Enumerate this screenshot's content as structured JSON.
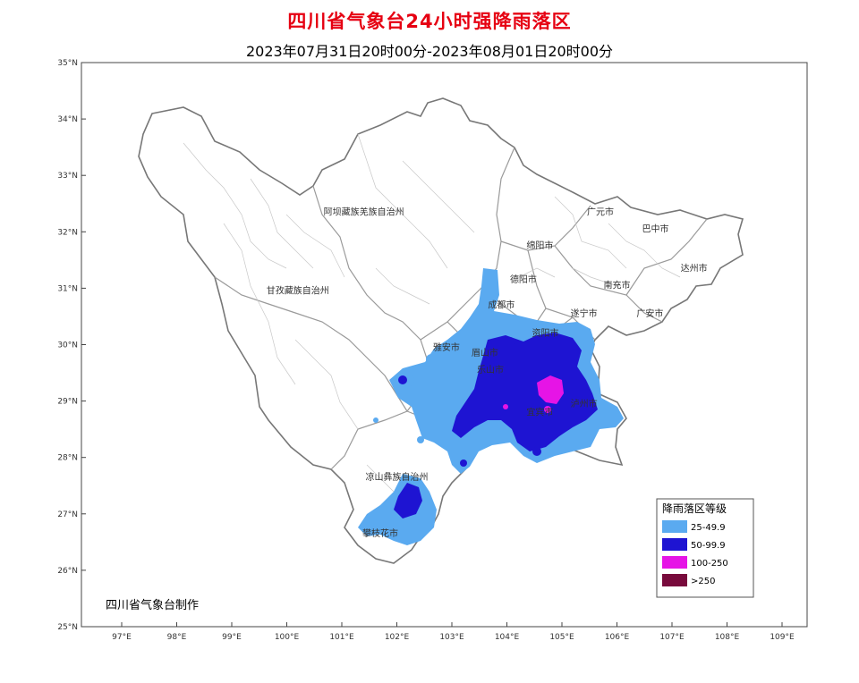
{
  "title": "四川省气象台24小时强降雨落区",
  "subtitle": "2023年07月31日20时00分-2023年08月01日20时00分",
  "credit": "四川省气象台制作",
  "axes": {
    "lat_labels": [
      "35°N",
      "34°N",
      "33°N",
      "32°N",
      "31°N",
      "30°N",
      "29°N",
      "28°N",
      "27°N",
      "26°N",
      "25°N"
    ],
    "lon_labels": [
      "97°E",
      "98°E",
      "99°E",
      "100°E",
      "101°E",
      "102°E",
      "103°E",
      "104°E",
      "105°E",
      "106°E",
      "107°E",
      "108°E",
      "109°E"
    ]
  },
  "places": [
    {
      "name": "阿坝藏族羌族自治州",
      "lon": 101.4,
      "lat": 32.3
    },
    {
      "name": "甘孜藏族自治州",
      "lon": 100.2,
      "lat": 30.9
    },
    {
      "name": "凉山彝族自治州",
      "lon": 102.0,
      "lat": 27.6
    },
    {
      "name": "攀枝花市",
      "lon": 101.7,
      "lat": 26.6
    },
    {
      "name": "雅安市",
      "lon": 102.9,
      "lat": 29.9
    },
    {
      "name": "眉山市",
      "lon": 103.6,
      "lat": 29.8
    },
    {
      "name": "成都市",
      "lon": 103.9,
      "lat": 30.65
    },
    {
      "name": "德阳市",
      "lon": 104.3,
      "lat": 31.1
    },
    {
      "name": "绵阳市",
      "lon": 104.6,
      "lat": 31.7
    },
    {
      "name": "广元市",
      "lon": 105.7,
      "lat": 32.3
    },
    {
      "name": "巴中市",
      "lon": 106.7,
      "lat": 32.0
    },
    {
      "name": "达州市",
      "lon": 107.4,
      "lat": 31.3
    },
    {
      "name": "南充市",
      "lon": 106.0,
      "lat": 31.0
    },
    {
      "name": "遂宁市",
      "lon": 105.4,
      "lat": 30.5
    },
    {
      "name": "广安市",
      "lon": 106.6,
      "lat": 30.5
    },
    {
      "name": "资阳市",
      "lon": 104.7,
      "lat": 30.15
    },
    {
      "name": "乐山市",
      "lon": 103.7,
      "lat": 29.5
    },
    {
      "name": "泸州市",
      "lon": 105.4,
      "lat": 28.9
    },
    {
      "name": "宜宾市",
      "lon": 104.6,
      "lat": 28.75
    }
  ],
  "legend": {
    "title": "降雨落区等级",
    "items": [
      {
        "label": "25-49.9",
        "color": "#5aaaf0"
      },
      {
        "label": "50-99.9",
        "color": "#1e14d2"
      },
      {
        "label": "100-250",
        "color": "#e614e6"
      },
      {
        "label": ">250",
        "color": "#780a3c"
      }
    ]
  }
}
